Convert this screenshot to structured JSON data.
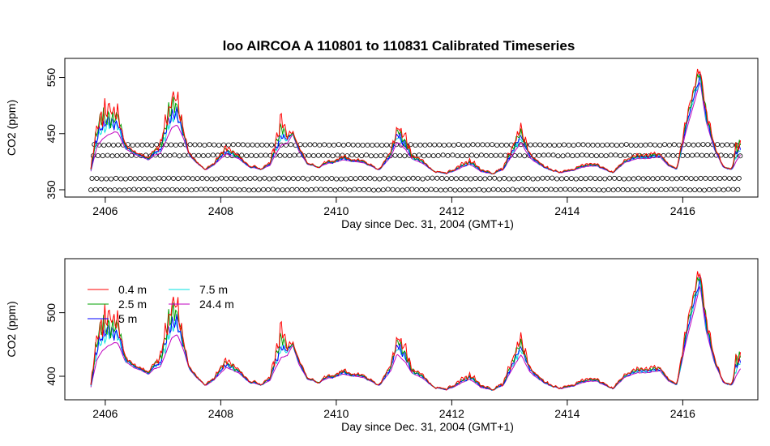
{
  "title": "loo   AIRCOA  A    110801  to  110831   Calibrated Timeseries",
  "chart_data": [
    {
      "type": "line",
      "xlabel": "Day since Dec. 31, 2004 (GMT+1)",
      "ylabel": "CO2 (ppm)",
      "xlim": [
        2405.3,
        2417.3
      ],
      "ylim": [
        337,
        584
      ],
      "xticks": [
        2406,
        2408,
        2410,
        2412,
        2414,
        2416
      ],
      "yticks": [
        350,
        450,
        550
      ],
      "xtick_labels": [
        "2406",
        "2408",
        "2410",
        "2412",
        "2414",
        "2416"
      ],
      "ytick_labels": [
        "350",
        "450",
        "550"
      ],
      "x_range": [
        2405.75,
        2417.0
      ],
      "calibration_levels": [
        350,
        370,
        411,
        430
      ],
      "calibration_interval_days": 0.083,
      "series": [
        {
          "color": "#ff0000"
        },
        {
          "color": "#00a000"
        },
        {
          "color": "#0000ff"
        },
        {
          "color": "#00e0e0"
        },
        {
          "color": "#c000c0"
        }
      ],
      "profile": {
        "x": [
          2405.75,
          2405.85,
          2405.95,
          2406.05,
          2406.15,
          2406.22,
          2406.35,
          2406.5,
          2406.6,
          2406.75,
          2406.85,
          2406.95,
          2407.05,
          2407.15,
          2407.25,
          2407.35,
          2407.45,
          2407.55,
          2407.65,
          2407.75,
          2407.9,
          2408.1,
          2408.3,
          2408.5,
          2408.7,
          2408.85,
          2408.95,
          2409.05,
          2409.15,
          2409.25,
          2409.35,
          2409.5,
          2409.7,
          2409.85,
          2409.95,
          2410.1,
          2410.3,
          2410.5,
          2410.75,
          2410.95,
          2411.05,
          2411.2,
          2411.3,
          2411.5,
          2411.7,
          2411.9,
          2412.1,
          2412.3,
          2412.5,
          2412.7,
          2412.9,
          2413.05,
          2413.2,
          2413.35,
          2413.5,
          2413.7,
          2413.9,
          2414.1,
          2414.3,
          2414.5,
          2414.65,
          2414.8,
          2415.0,
          2415.2,
          2415.4,
          2415.6,
          2415.75,
          2415.9,
          2416.05,
          2416.2,
          2416.3,
          2416.4,
          2416.55,
          2416.7,
          2416.85,
          2416.92,
          2417.0
        ],
        "base": [
          382,
          418,
          432,
          440,
          448,
          446,
          422,
          412,
          410,
          402,
          410,
          412,
          430,
          452,
          458,
          440,
          412,
          400,
          392,
          385,
          395,
          412,
          405,
          390,
          386,
          392,
          410,
          422,
          430,
          448,
          418,
          395,
          390,
          396,
          398,
          402,
          400,
          396,
          385,
          408,
          430,
          418,
          405,
          395,
          383,
          378,
          385,
          395,
          382,
          378,
          386,
          410,
          430,
          405,
          395,
          385,
          380,
          384,
          390,
          392,
          385,
          380,
          398,
          404,
          405,
          408,
          392,
          386,
          448,
          500,
          540,
          470,
          420,
          390,
          386,
          395,
          408
        ],
        "amp": [
          5,
          50,
          70,
          60,
          45,
          50,
          10,
          5,
          5,
          4,
          10,
          20,
          60,
          70,
          60,
          20,
          5,
          3,
          2,
          2,
          5,
          15,
          8,
          3,
          2,
          5,
          30,
          60,
          20,
          5,
          10,
          3,
          2,
          5,
          5,
          8,
          5,
          3,
          2,
          15,
          40,
          25,
          10,
          5,
          2,
          1,
          5,
          10,
          5,
          2,
          5,
          20,
          35,
          10,
          5,
          3,
          1,
          2,
          4,
          4,
          2,
          1,
          5,
          8,
          10,
          8,
          3,
          2,
          30,
          40,
          30,
          30,
          10,
          3,
          3,
          40,
          35
        ]
      }
    },
    {
      "type": "line",
      "xlabel": "Day since Dec. 31, 2004 (GMT+1)",
      "ylabel": "CO2 (ppm)",
      "xlim": [
        2405.3,
        2417.3
      ],
      "ylim": [
        363,
        585
      ],
      "xticks": [
        2406,
        2408,
        2410,
        2412,
        2414,
        2416
      ],
      "yticks": [
        400,
        500
      ],
      "xtick_labels": [
        "2406",
        "2408",
        "2410",
        "2412",
        "2414",
        "2416"
      ],
      "ytick_labels": [
        "400",
        "500"
      ],
      "legend": {
        "position": "top-left",
        "entries": [
          {
            "label": "0.4 m",
            "color": "#ff0000"
          },
          {
            "label": "2.5 m",
            "color": "#00a000"
          },
          {
            "label": "5 m",
            "color": "#0000ff"
          },
          {
            "label": "7.5 m",
            "color": "#00e0e0"
          },
          {
            "label": "24.4 m",
            "color": "#c000c0"
          }
        ]
      },
      "series": [
        {
          "name": "0.4 m",
          "color": "#ff0000"
        },
        {
          "name": "2.5 m",
          "color": "#00a000"
        },
        {
          "name": "5 m",
          "color": "#0000ff"
        },
        {
          "name": "7.5 m",
          "color": "#00e0e0"
        },
        {
          "name": "24.4 m",
          "color": "#c000c0"
        }
      ]
    }
  ]
}
